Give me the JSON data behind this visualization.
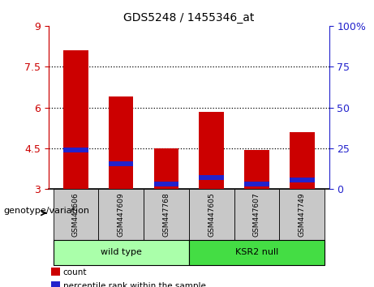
{
  "title": "GDS5248 / 1455346_at",
  "samples": [
    "GSM447606",
    "GSM447609",
    "GSM447768",
    "GSM447605",
    "GSM447607",
    "GSM447749"
  ],
  "red_values": [
    8.1,
    6.4,
    4.5,
    5.85,
    4.45,
    5.1
  ],
  "blue_values": [
    4.35,
    3.85,
    3.1,
    3.35,
    3.1,
    3.25
  ],
  "blue_heights": [
    0.18,
    0.18,
    0.18,
    0.18,
    0.18,
    0.18
  ],
  "y_min": 3.0,
  "y_max": 9.0,
  "y_ticks": [
    3,
    4.5,
    6,
    7.5,
    9
  ],
  "y_right_ticks": [
    0,
    25,
    50,
    75,
    100
  ],
  "y_right_labels": [
    "0",
    "25",
    "50",
    "75",
    "100%"
  ],
  "bar_width": 0.55,
  "red_color": "#CC0000",
  "blue_color": "#2222CC",
  "bg_color": "#FFFFFF",
  "plot_bg_color": "#FFFFFF",
  "axis_left_color": "#CC0000",
  "axis_right_color": "#2222CC",
  "gray_cell_color": "#C8C8C8",
  "wt_color": "#AAFFAA",
  "ksr_color": "#44DD44",
  "legend_red_label": "count",
  "legend_blue_label": "percentile rank within the sample",
  "genotype_label": "genotype/variation"
}
